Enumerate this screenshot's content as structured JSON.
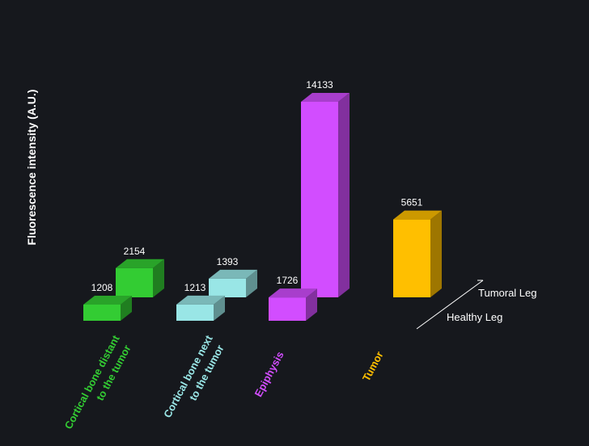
{
  "chart_data": {
    "type": "bar",
    "ylabel": "Fluorescence intensity (A.U.)",
    "categories": [
      {
        "lines": [
          "Cortical bone distant",
          "to the tumor"
        ],
        "color": "#33cc33"
      },
      {
        "lines": [
          "Cortical bone next",
          "to the tumor"
        ],
        "color": "#99e6e6"
      },
      {
        "lines": [
          "Epiphysis"
        ],
        "color": "#d24dff"
      },
      {
        "lines": [
          "Tumor"
        ],
        "color": "#ffbf00"
      }
    ],
    "series": [
      {
        "name": "Healthy Leg",
        "values": [
          1208,
          1213,
          1726,
          null
        ]
      },
      {
        "name": "Tumoral Leg",
        "values": [
          2154,
          1393,
          14133,
          5651
        ]
      }
    ]
  }
}
